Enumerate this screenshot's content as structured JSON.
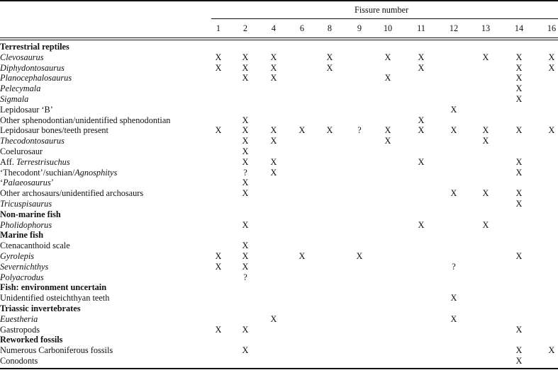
{
  "header": {
    "group_title": "Fissure number",
    "columns": [
      "1",
      "2",
      "4",
      "6",
      "8",
      "9",
      "10",
      "11",
      "12",
      "13",
      "14",
      "16"
    ]
  },
  "rows": [
    {
      "heading": true,
      "label": [
        {
          "t": "Terrestrial reptiles",
          "i": false
        }
      ],
      "cells": [
        "",
        "",
        "",
        "",
        "",
        "",
        "",
        "",
        "",
        "",
        "",
        ""
      ]
    },
    {
      "heading": false,
      "label": [
        {
          "t": "Clevosaurus",
          "i": true
        }
      ],
      "cells": [
        "X",
        "X",
        "X",
        "",
        "X",
        "",
        "X",
        "X",
        "",
        "X",
        "X",
        "X"
      ]
    },
    {
      "heading": false,
      "label": [
        {
          "t": "Diphydontosaurus",
          "i": true
        }
      ],
      "cells": [
        "X",
        "X",
        "X",
        "",
        "X",
        "",
        "",
        "X",
        "",
        "",
        "X",
        "X"
      ]
    },
    {
      "heading": false,
      "label": [
        {
          "t": "Planocephalosaurus",
          "i": true
        }
      ],
      "cells": [
        "",
        "X",
        "X",
        "",
        "",
        "",
        "X",
        "",
        "",
        "",
        "X",
        ""
      ]
    },
    {
      "heading": false,
      "label": [
        {
          "t": "Pelecymala",
          "i": true
        }
      ],
      "cells": [
        "",
        "",
        "",
        "",
        "",
        "",
        "",
        "",
        "",
        "",
        "X",
        ""
      ]
    },
    {
      "heading": false,
      "label": [
        {
          "t": "Sigmala",
          "i": true
        }
      ],
      "cells": [
        "",
        "",
        "",
        "",
        "",
        "",
        "",
        "",
        "",
        "",
        "X",
        ""
      ]
    },
    {
      "heading": false,
      "label": [
        {
          "t": "Lepidosaur ‘B’",
          "i": false
        }
      ],
      "cells": [
        "",
        "",
        "",
        "",
        "",
        "",
        "",
        "",
        "X",
        "",
        "",
        ""
      ]
    },
    {
      "heading": false,
      "label": [
        {
          "t": "Other sphenodontian/unidentified sphenodontian",
          "i": false
        }
      ],
      "cells": [
        "",
        "X",
        "",
        "",
        "",
        "",
        "",
        "X",
        "",
        "",
        "",
        ""
      ]
    },
    {
      "heading": false,
      "label": [
        {
          "t": "Lepidosaur bones/teeth present",
          "i": false
        }
      ],
      "cells": [
        "X",
        "X",
        "X",
        "X",
        "X",
        "?",
        "X",
        "X",
        "X",
        "X",
        "X",
        "X"
      ]
    },
    {
      "heading": false,
      "label": [
        {
          "t": "Thecodontosaurus",
          "i": true
        }
      ],
      "cells": [
        "",
        "X",
        "X",
        "",
        "",
        "",
        "X",
        "",
        "",
        "X",
        "",
        ""
      ]
    },
    {
      "heading": false,
      "label": [
        {
          "t": "Coelurosaur",
          "i": false
        }
      ],
      "cells": [
        "",
        "X",
        "",
        "",
        "",
        "",
        "",
        "",
        "",
        "",
        "",
        ""
      ]
    },
    {
      "heading": false,
      "label": [
        {
          "t": "Aff. ",
          "i": false
        },
        {
          "t": "Terrestrisuchus",
          "i": true
        }
      ],
      "cells": [
        "",
        "X",
        "X",
        "",
        "",
        "",
        "",
        "X",
        "",
        "",
        "X",
        ""
      ]
    },
    {
      "heading": false,
      "label": [
        {
          "t": "‘Thecodont’/suchian/",
          "i": false
        },
        {
          "t": "Agnosphitys",
          "i": true
        }
      ],
      "cells": [
        "",
        "?",
        "X",
        "",
        "",
        "",
        "",
        "",
        "",
        "",
        "X",
        ""
      ]
    },
    {
      "heading": false,
      "label": [
        {
          "t": "‘",
          "i": false
        },
        {
          "t": "Palaeosaurus",
          "i": true
        },
        {
          "t": "’",
          "i": false
        }
      ],
      "cells": [
        "",
        "X",
        "",
        "",
        "",
        "",
        "",
        "",
        "",
        "",
        "",
        ""
      ]
    },
    {
      "heading": false,
      "label": [
        {
          "t": "Other archosaurs/unidentified archosaurs",
          "i": false
        }
      ],
      "cells": [
        "",
        "X",
        "",
        "",
        "",
        "",
        "",
        "",
        "X",
        "X",
        "X",
        ""
      ]
    },
    {
      "heading": false,
      "label": [
        {
          "t": "Tricuspisaurus",
          "i": true
        }
      ],
      "cells": [
        "",
        "",
        "",
        "",
        "",
        "",
        "",
        "",
        "",
        "",
        "X",
        ""
      ]
    },
    {
      "heading": true,
      "label": [
        {
          "t": "Non-marine fish",
          "i": false
        }
      ],
      "cells": [
        "",
        "",
        "",
        "",
        "",
        "",
        "",
        "",
        "",
        "",
        "",
        ""
      ]
    },
    {
      "heading": false,
      "label": [
        {
          "t": "Pholidophorus",
          "i": true
        }
      ],
      "cells": [
        "",
        "X",
        "",
        "",
        "",
        "",
        "",
        "X",
        "",
        "X",
        "",
        ""
      ]
    },
    {
      "heading": true,
      "label": [
        {
          "t": "Marine fish",
          "i": false
        }
      ],
      "cells": [
        "",
        "",
        "",
        "",
        "",
        "",
        "",
        "",
        "",
        "",
        "",
        ""
      ]
    },
    {
      "heading": false,
      "label": [
        {
          "t": "Ctenacanthoid scale",
          "i": false
        }
      ],
      "cells": [
        "",
        "X",
        "",
        "",
        "",
        "",
        "",
        "",
        "",
        "",
        "",
        ""
      ]
    },
    {
      "heading": false,
      "label": [
        {
          "t": "Gyrolepis",
          "i": true
        }
      ],
      "cells": [
        "X",
        "X",
        "",
        "X",
        "",
        "X",
        "",
        "",
        "",
        "",
        "X",
        ""
      ]
    },
    {
      "heading": false,
      "label": [
        {
          "t": "Severnichthys",
          "i": true
        }
      ],
      "cells": [
        "X",
        "X",
        "",
        "",
        "",
        "",
        "",
        "",
        "?",
        "",
        "",
        ""
      ]
    },
    {
      "heading": false,
      "label": [
        {
          "t": "Polyacrodus",
          "i": true
        }
      ],
      "cells": [
        "",
        "?",
        "",
        "",
        "",
        "",
        "",
        "",
        "",
        "",
        "",
        ""
      ]
    },
    {
      "heading": true,
      "label": [
        {
          "t": "Fish: environment uncertain",
          "i": false
        }
      ],
      "cells": [
        "",
        "",
        "",
        "",
        "",
        "",
        "",
        "",
        "",
        "",
        "",
        ""
      ]
    },
    {
      "heading": false,
      "label": [
        {
          "t": "Unidentified osteichthyan teeth",
          "i": false
        }
      ],
      "cells": [
        "",
        "",
        "",
        "",
        "",
        "",
        "",
        "",
        "X",
        "",
        "",
        ""
      ]
    },
    {
      "heading": true,
      "label": [
        {
          "t": "Triassic invertebrates",
          "i": false
        }
      ],
      "cells": [
        "",
        "",
        "",
        "",
        "",
        "",
        "",
        "",
        "",
        "",
        "",
        ""
      ]
    },
    {
      "heading": false,
      "label": [
        {
          "t": "Euestheria",
          "i": true
        }
      ],
      "cells": [
        "",
        "",
        "X",
        "",
        "",
        "",
        "",
        "",
        "X",
        "",
        "",
        ""
      ]
    },
    {
      "heading": false,
      "label": [
        {
          "t": "Gastropods",
          "i": false
        }
      ],
      "cells": [
        "X",
        "X",
        "",
        "",
        "",
        "",
        "",
        "",
        "",
        "",
        "X",
        ""
      ]
    },
    {
      "heading": true,
      "label": [
        {
          "t": "Reworked fossils",
          "i": false
        }
      ],
      "cells": [
        "",
        "",
        "",
        "",
        "",
        "",
        "",
        "",
        "",
        "",
        "",
        ""
      ]
    },
    {
      "heading": false,
      "label": [
        {
          "t": "Numerous Carboniferous fossils",
          "i": false
        }
      ],
      "cells": [
        "",
        "X",
        "",
        "",
        "",
        "",
        "",
        "",
        "",
        "",
        "X",
        "X"
      ]
    },
    {
      "heading": false,
      "label": [
        {
          "t": "Conodonts",
          "i": false
        }
      ],
      "cells": [
        "",
        "",
        "",
        "",
        "",
        "",
        "",
        "",
        "",
        "",
        "X",
        ""
      ]
    }
  ]
}
